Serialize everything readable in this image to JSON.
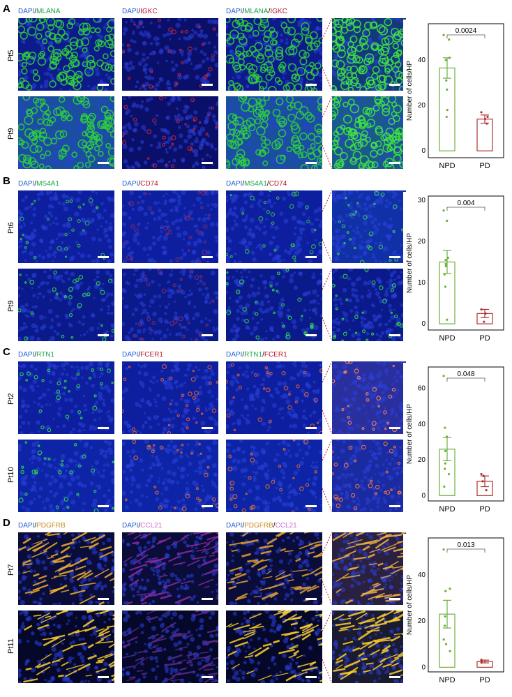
{
  "panels": [
    {
      "letter": "A",
      "headers": [
        {
          "parts": [
            {
              "t": "DAPI",
              "c": "#1f5fd6"
            },
            {
              "t": "/",
              "c": "#000000"
            },
            {
              "t": "MLANA",
              "c": "#1aa84a"
            }
          ]
        },
        {
          "parts": [
            {
              "t": "DAPI",
              "c": "#1f5fd6"
            },
            {
              "t": "/",
              "c": "#000000"
            },
            {
              "t": "IGKC",
              "c": "#c0182a"
            }
          ]
        },
        {
          "parts": [
            {
              "t": "DAPI",
              "c": "#1f5fd6"
            },
            {
              "t": "/",
              "c": "#000000"
            },
            {
              "t": "MLANA",
              "c": "#1aa84a"
            },
            {
              "t": "/",
              "c": "#000000"
            },
            {
              "t": "IGKC",
              "c": "#c0182a"
            }
          ]
        }
      ],
      "rows": [
        "Pt5",
        "Pt9"
      ],
      "tiles": [
        [
          "#0c1a8a",
          "#0a0f6a",
          "#0c1a8a",
          "#123a7a"
        ],
        [
          "#1a4fa0",
          "#0a0f6a",
          "#1a4fa0",
          "#1a5a8a"
        ]
      ],
      "overlays": [
        [
          "#2fd13a",
          "#c8273a",
          "#2fd13a",
          "#3fe63f"
        ],
        [
          "#2fd13a",
          "#c8273a",
          "#2fd13a",
          "#3fe63f"
        ]
      ]
    },
    {
      "letter": "B",
      "headers": [
        {
          "parts": [
            {
              "t": "DAPI",
              "c": "#1f5fd6"
            },
            {
              "t": "/",
              "c": "#000000"
            },
            {
              "t": "MS4A1",
              "c": "#1aa84a"
            }
          ]
        },
        {
          "parts": [
            {
              "t": "DAPI",
              "c": "#1f5fd6"
            },
            {
              "t": "/",
              "c": "#000000"
            },
            {
              "t": "CD74",
              "c": "#c0182a"
            }
          ]
        },
        {
          "parts": [
            {
              "t": "DAPI",
              "c": "#1f5fd6"
            },
            {
              "t": "/",
              "c": "#000000"
            },
            {
              "t": "MS4A1",
              "c": "#1aa84a"
            },
            {
              "t": "/",
              "c": "#000000"
            },
            {
              "t": "CD74",
              "c": "#c0182a"
            }
          ]
        }
      ],
      "rows": [
        "Pt6",
        "Pt9"
      ],
      "tiles": [
        [
          "#0d1f9e",
          "#0d1f9e",
          "#0d1f9e",
          "#1030a8"
        ],
        [
          "#0a1a8a",
          "#0a1a8a",
          "#0a1a8a",
          "#0a1a8a"
        ]
      ],
      "overlays": [
        [
          "#34c24a",
          "#8b2a6a",
          "#34c24a",
          "#3fd05a"
        ],
        [
          "#2fe04a",
          "#8b2a6a",
          "#2fe04a",
          "#2fe04a"
        ]
      ]
    },
    {
      "letter": "C",
      "headers": [
        {
          "parts": [
            {
              "t": "DAPI",
              "c": "#1f5fd6"
            },
            {
              "t": "/",
              "c": "#000000"
            },
            {
              "t": "RTN1",
              "c": "#1aa84a"
            }
          ]
        },
        {
          "parts": [
            {
              "t": "DAPI",
              "c": "#1f5fd6"
            },
            {
              "t": "/",
              "c": "#000000"
            },
            {
              "t": "FCER1",
              "c": "#c0182a"
            }
          ]
        },
        {
          "parts": [
            {
              "t": "DAPI",
              "c": "#1f5fd6"
            },
            {
              "t": "/",
              "c": "#000000"
            },
            {
              "t": "RTN1",
              "c": "#1aa84a"
            },
            {
              "t": "/",
              "c": "#000000"
            },
            {
              "t": "FCER1",
              "c": "#c0182a"
            }
          ]
        }
      ],
      "rows": [
        "Pt2",
        "Pt10"
      ],
      "tiles": [
        [
          "#0d1f9e",
          "#0d1f9e",
          "#0d1f9e",
          "#2a2f9e"
        ],
        [
          "#0e24a6",
          "#0e24a6",
          "#0e24a6",
          "#1a2aa0"
        ]
      ],
      "overlays": [
        [
          "#2fe04a",
          "#e0603a",
          "#e0603a",
          "#ff8a5a"
        ],
        [
          "#2fe04a",
          "#e0702a",
          "#e0702a",
          "#ff7a3a"
        ]
      ]
    },
    {
      "letter": "D",
      "headers": [
        {
          "parts": [
            {
              "t": "DAPI",
              "c": "#1f5fd6"
            },
            {
              "t": "/",
              "c": "#000000"
            },
            {
              "t": "PDGFRB",
              "c": "#c98a1e"
            }
          ]
        },
        {
          "parts": [
            {
              "t": "DAPI",
              "c": "#1f5fd6"
            },
            {
              "t": "/",
              "c": "#000000"
            },
            {
              "t": "CCL21",
              "c": "#d06ad6"
            }
          ]
        },
        {
          "parts": [
            {
              "t": "DAPI",
              "c": "#1f5fd6"
            },
            {
              "t": "/",
              "c": "#000000"
            },
            {
              "t": "PDGFRB",
              "c": "#c98a1e"
            },
            {
              "t": "/",
              "c": "#000000"
            },
            {
              "t": "CCL21",
              "c": "#d06ad6"
            }
          ]
        }
      ],
      "rows": [
        "Pt7",
        "Pt11"
      ],
      "tiles": [
        [
          "#0a0c3a",
          "#0a0c3a",
          "#0a0c3a",
          "#2a2040"
        ],
        [
          "#06082a",
          "#06082a",
          "#06082a",
          "#1a1a30"
        ]
      ],
      "overlays": [
        [
          "#f0b02a",
          "#8a2aa0",
          "#e0a030",
          "#f0b040"
        ],
        [
          "#ffd02a",
          "#5a2a8a",
          "#ffd02a",
          "#ffd02a"
        ]
      ]
    }
  ],
  "chart_data": [
    {
      "type": "bar",
      "panel": "A",
      "categories": [
        "NPD",
        "PD"
      ],
      "values": [
        36.5,
        14.0
      ],
      "errors": [
        4.5,
        1.8
      ],
      "points": [
        [
          51,
          49,
          41,
          40,
          31,
          27,
          18,
          15
        ],
        [
          17,
          15,
          14,
          12
        ]
      ],
      "colors": [
        "#6ab03a",
        "#b03030"
      ],
      "ylabel": "Number of cells/HP",
      "yticks": [
        0,
        20,
        40
      ],
      "ylim": [
        -3,
        56
      ],
      "pvalue": "0.0024"
    },
    {
      "type": "bar",
      "panel": "B",
      "categories": [
        "NPD",
        "PD"
      ],
      "values": [
        15.0,
        2.5
      ],
      "errors": [
        2.8,
        1.0
      ],
      "points": [
        [
          27.5,
          25,
          16,
          15.5,
          14.5,
          14,
          12,
          9,
          1
        ],
        [
          3.5,
          2.5,
          0.5
        ]
      ],
      "colors": [
        "#6ab03a",
        "#b03030"
      ],
      "ylabel": "Number of cells/HP",
      "yticks": [
        0,
        10,
        20,
        30
      ],
      "ylim": [
        -1.5,
        31
      ],
      "pvalue": "0.004"
    },
    {
      "type": "bar",
      "panel": "C",
      "categories": [
        "NPD",
        "PD"
      ],
      "values": [
        26.0,
        8.0
      ],
      "errors": [
        6.5,
        3.0
      ],
      "points": [
        [
          67,
          38,
          33,
          25,
          18,
          15,
          12,
          5
        ],
        [
          12,
          11,
          8,
          3
        ]
      ],
      "colors": [
        "#6ab03a",
        "#b03030"
      ],
      "ylabel": "Number of cells/HP",
      "yticks": [
        0,
        20,
        40,
        60
      ],
      "ylim": [
        -3,
        72
      ],
      "pvalue": "0.048"
    },
    {
      "type": "bar",
      "panel": "D",
      "categories": [
        "NPD",
        "PD"
      ],
      "values": [
        23.0,
        2.5
      ],
      "errors": [
        6.0,
        0.6
      ],
      "points": [
        [
          51,
          34,
          33,
          22,
          18,
          12,
          10,
          7
        ],
        [
          3.2,
          2.5,
          2.0
        ]
      ],
      "colors": [
        "#6ab03a",
        "#b03030"
      ],
      "ylabel": "Number of cells/HP",
      "yticks": [
        0,
        20,
        40
      ],
      "ylim": [
        -2,
        56
      ],
      "pvalue": "0.013"
    }
  ]
}
